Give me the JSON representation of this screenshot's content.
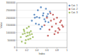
{
  "chart_data": {
    "type": "scatter",
    "xlabel": "Index",
    "ylabel": "Value",
    "xlim": [
      0,
      1
    ],
    "xticks": [
      0,
      0.2,
      0.4,
      0.6,
      0.8,
      1
    ],
    "ylim": [
      0,
      3000000
    ],
    "yticks": [
      0,
      500000,
      1000000,
      1500000,
      2000000,
      2500000,
      3000000
    ],
    "grid": true,
    "legend": "upper right",
    "marker": "circle",
    "series": [
      {
        "name": "Cat. 1",
        "color": "#4f81bd",
        "x": [
          0.3,
          0.35,
          0.38,
          0.42,
          0.45,
          0.48,
          0.5,
          0.53,
          0.55,
          0.58,
          0.6,
          0.63,
          0.66,
          0.4,
          0.44,
          0.52,
          0.57,
          0.62,
          0.47,
          0.36
        ],
        "values": [
          1800000,
          2200000,
          1600000,
          2500000,
          2000000,
          2700000,
          1400000,
          2300000,
          1900000,
          2600000,
          2100000,
          1700000,
          2400000,
          2050000,
          1550000,
          2150000,
          1750000,
          2250000,
          1250000,
          2000000
        ]
      },
      {
        "name": "Cat. 2",
        "color": "#c0504d",
        "x": [
          0.55,
          0.6,
          0.65,
          0.68,
          0.72,
          0.75,
          0.78,
          0.8,
          0.83,
          0.86,
          0.9,
          0.62,
          0.7,
          0.74,
          0.77,
          0.82,
          0.88,
          0.67,
          0.85,
          0.92
        ],
        "values": [
          1500000,
          2000000,
          1200000,
          1800000,
          2200000,
          900000,
          1600000,
          2000000,
          1300000,
          1700000,
          1500000,
          800000,
          1400000,
          1900000,
          1100000,
          1000000,
          1800000,
          2300000,
          1200000,
          1400000
        ]
      },
      {
        "name": "Cat. 3",
        "color": "#9bbb59",
        "x": [
          0.08,
          0.12,
          0.15,
          0.18,
          0.2,
          0.22,
          0.25,
          0.27,
          0.3,
          0.32,
          0.1,
          0.14,
          0.17,
          0.21,
          0.24,
          0.28,
          0.19,
          0.23,
          0.16,
          0.26
        ],
        "values": [
          700000,
          900000,
          1100000,
          500000,
          1300000,
          800000,
          1000000,
          600000,
          900000,
          700000,
          400000,
          1200000,
          300000,
          1000000,
          1400000,
          1100000,
          750000,
          550000,
          950000,
          850000
        ]
      }
    ]
  }
}
